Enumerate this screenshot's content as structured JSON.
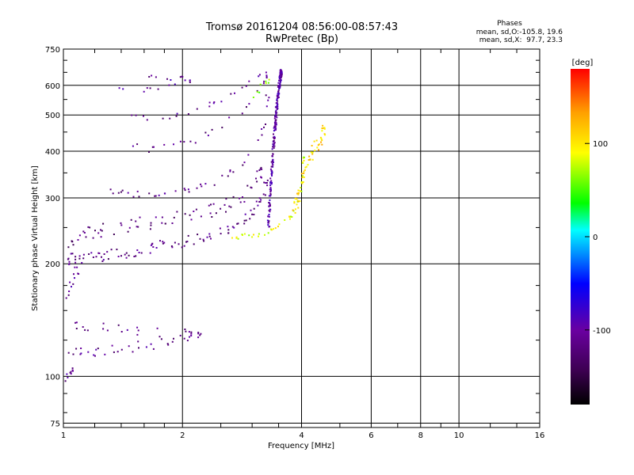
{
  "chart_data": {
    "type": "scatter",
    "title": "Tromsø 20161204 08:56:00-08:57:43",
    "subtitle": "RwPretec (Bp)",
    "xlabel": "Frequency [MHz]",
    "ylabel": "Stationary phase Virtual Height [km]",
    "x_scale": "log",
    "y_scale": "log",
    "xlim": [
      1,
      16
    ],
    "ylim": [
      73,
      750
    ],
    "x_ticks": [
      "1",
      "2",
      "4",
      "6",
      "8",
      "10",
      "16"
    ],
    "y_ticks": [
      "75",
      "100",
      "200",
      "300",
      "400",
      "500",
      "600",
      "750"
    ],
    "grid": true,
    "annotation": {
      "title": "Phases",
      "line1": "mean, sd,O:-105.8, 19.6",
      "line2": "mean, sd,X:  97.7, 23.3"
    },
    "colorbar": {
      "label": "[deg]",
      "ticks": [
        "100",
        "0",
        "-100"
      ],
      "range": [
        -180,
        180
      ],
      "colors": [
        "#000000",
        "#3c0050",
        "#6a00a0",
        "#0000ff",
        "#00a0ff",
        "#00ffff",
        "#00ff00",
        "#ffff00",
        "#ffa000",
        "#ff0000"
      ]
    },
    "series": [
      {
        "traces": [
          {
            "x": [
              1.02,
              1.05,
              1.1,
              1.15,
              1.22,
              1.3,
              1.4,
              1.5,
              1.6,
              1.72,
              1.85,
              2.0,
              2.15,
              2.3,
              2.5,
              2.7,
              2.9,
              3.05,
              3.15,
              3.25
            ],
            "y": [
              205,
              206,
              207,
              208,
              210,
              212,
              214,
              216,
              218,
              221,
              225,
              229,
              233,
              238,
              244,
              252,
              262,
              278,
              298,
              330
            ],
            "phase": -115,
            "spread": 0.045,
            "n": 5
          },
          {
            "x": [
              1.03,
              1.08,
              1.15,
              1.25,
              1.35,
              1.5,
              1.65,
              1.8,
              2.0,
              2.2,
              2.4,
              2.6,
              2.8,
              3.0,
              3.15
            ],
            "y": [
              225,
              232,
              240,
              245,
              250,
              255,
              258,
              262,
              268,
              272,
              280,
              288,
              300,
              320,
              350
            ],
            "phase": -120,
            "spread": 0.05,
            "n": 5
          },
          {
            "x": [
              1.3,
              1.4,
              1.5,
              1.6,
              1.75,
              1.9,
              2.05,
              2.2,
              2.4,
              2.6,
              2.8,
              3.0,
              3.2,
              3.28
            ],
            "y": [
              310,
              307,
              305,
              306,
              308,
              310,
              315,
              320,
              330,
              345,
              365,
              400,
              460,
              560
            ],
            "phase": -115,
            "spread": 0.03,
            "n": 3
          },
          {
            "x": [
              1.4,
              1.55,
              1.7,
              1.85,
              2.0,
              2.15,
              2.3,
              2.5,
              2.7,
              2.9,
              3.1,
              3.25
            ],
            "y": [
              420,
              410,
              405,
              410,
              420,
              430,
              445,
              465,
              495,
              530,
              580,
              640
            ],
            "phase": -115,
            "spread": 0.03,
            "n": 2
          },
          {
            "x": [
              1.45,
              1.6,
              1.75,
              1.9,
              2.05,
              2.2,
              2.35,
              2.5,
              2.7,
              2.9,
              3.1,
              3.25
            ],
            "y": [
              495,
              490,
              492,
              500,
              510,
              520,
              535,
              550,
              575,
              600,
              625,
              650
            ],
            "phase": -110,
            "spread": 0.025,
            "n": 2
          },
          {
            "x": [
              1.35,
              1.5,
              1.65,
              1.8,
              1.95,
              2.1
            ],
            "y": [
              590,
              580,
              585,
              595,
              605,
              615
            ],
            "phase": -105,
            "spread": 0.02,
            "n": 2
          },
          {
            "x": [
              1.55,
              1.7,
              1.85,
              2.0
            ],
            "y": [
              640,
              630,
              628,
              635
            ],
            "phase": -105,
            "spread": 0.02,
            "n": 2
          },
          {
            "x": [
              1.03,
              1.1,
              1.2,
              1.3,
              1.45,
              1.6,
              1.8,
              2.0,
              2.2
            ],
            "y": [
              118,
              117,
              116,
              117,
              119,
              121,
              124,
              127,
              130
            ],
            "phase": -110,
            "spread": 0.04,
            "n": 4
          },
          {
            "x": [
              1.05,
              1.1,
              1.2,
              1.35,
              1.5,
              1.7,
              1.9,
              2.1
            ],
            "y": [
              138,
              137,
              135,
              134,
              133,
              131,
              130,
              130
            ],
            "phase": -115,
            "spread": 0.04,
            "n": 3
          },
          {
            "x": [
              1.02,
              1.05,
              1.08
            ],
            "y": [
              160,
              175,
              190
            ],
            "phase": -100,
            "spread": 0.04,
            "n": 4
          },
          {
            "x": [
              1.01,
              1.03,
              1.05
            ],
            "y": [
              96,
              100,
              104
            ],
            "phase": -110,
            "spread": 0.03,
            "n": 3
          },
          {
            "x": [
              2.6,
              2.8,
              3.0,
              3.2,
              3.4,
              3.6,
              3.75,
              3.85,
              3.95,
              4.0,
              4.05
            ],
            "y": [
              235,
              236,
              238,
              242,
              248,
              256,
              265,
              278,
              295,
              330,
              380
            ],
            "phase": 85,
            "spread": 0.02,
            "n": 4
          },
          {
            "x": [
              3.8,
              3.9,
              4.0,
              4.1,
              4.25,
              4.4,
              4.55
            ],
            "y": [
              280,
              300,
              330,
              360,
              390,
              420,
              450
            ],
            "phase": 110,
            "spread": 0.05,
            "n": 8
          },
          {
            "x": [
              3.0,
              3.1,
              3.2,
              3.3
            ],
            "y": [
              560,
              580,
              600,
              620
            ],
            "phase": 65,
            "spread": 0.03,
            "n": 2
          },
          {
            "x": [
              3.3,
              3.35,
              3.4,
              3.45,
              3.5,
              3.55
            ],
            "y": [
              250,
              330,
              420,
              500,
              580,
              650
            ],
            "phase": -100,
            "spread": 0.02,
            "n": 40
          }
        ]
      }
    ]
  }
}
